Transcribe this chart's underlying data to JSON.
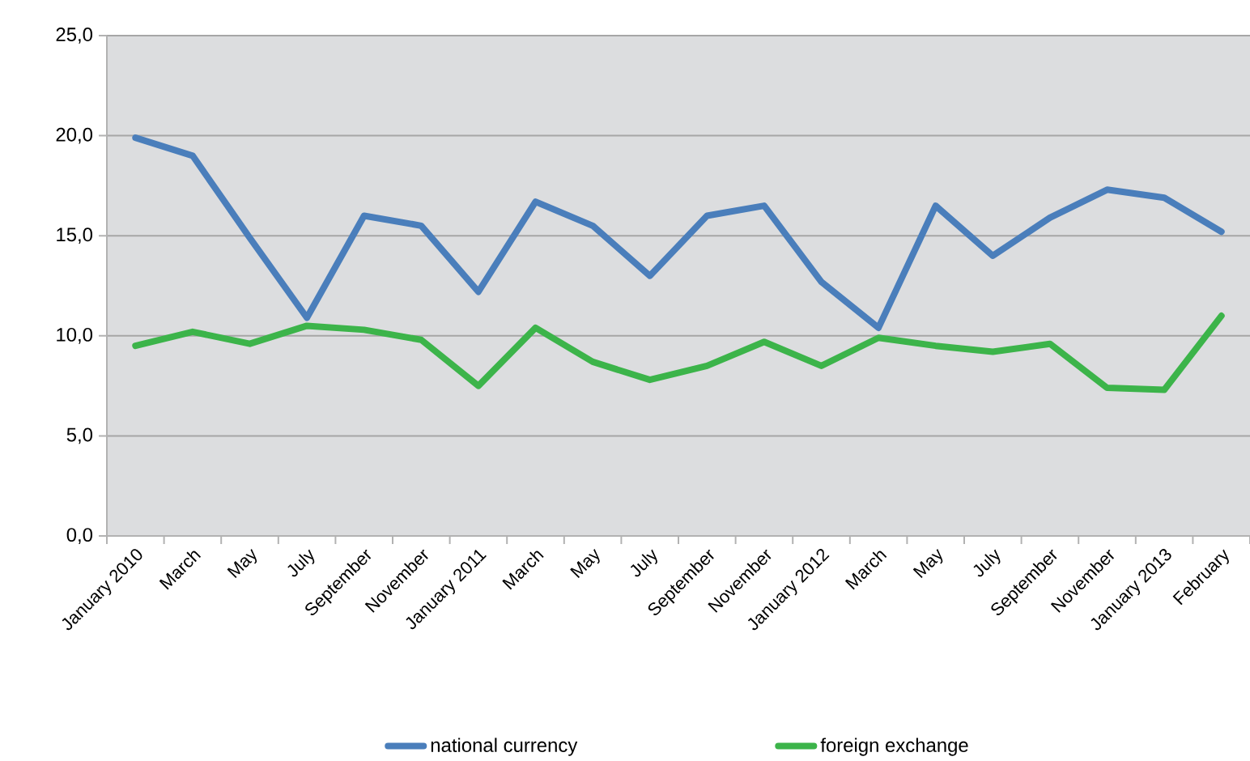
{
  "chart_data": {
    "type": "line",
    "categories": [
      "January 2010",
      "March",
      "May",
      "July",
      "September",
      "November",
      "January 2011",
      "March",
      "May",
      "July",
      "September",
      "November",
      "January 2012",
      "March",
      "May",
      "July",
      "September",
      "November",
      "January 2013",
      "February"
    ],
    "series": [
      {
        "name": "national currency",
        "color": "#4a7ebb",
        "values": [
          19.9,
          19.0,
          14.9,
          10.9,
          16.0,
          15.5,
          12.2,
          16.7,
          15.5,
          13.0,
          16.0,
          16.5,
          12.7,
          10.4,
          16.5,
          14.0,
          15.9,
          17.3,
          16.9,
          15.2
        ]
      },
      {
        "name": "foreign exchange",
        "color": "#3cb44a",
        "values": [
          9.5,
          10.2,
          9.6,
          10.5,
          10.3,
          9.8,
          7.5,
          10.4,
          8.7,
          7.8,
          8.5,
          9.7,
          8.5,
          9.9,
          9.5,
          9.2,
          9.6,
          7.4,
          7.3,
          11.0
        ]
      }
    ],
    "ylim": [
      0,
      25
    ],
    "yticks": [
      {
        "value": 0,
        "label": "0,0"
      },
      {
        "value": 5,
        "label": "5,0"
      },
      {
        "value": 10,
        "label": "10,0"
      },
      {
        "value": 15,
        "label": "15,0"
      },
      {
        "value": 20,
        "label": "20,0"
      },
      {
        "value": 25,
        "label": "25,0"
      }
    ],
    "grid": "y",
    "legend": "bottom",
    "marker": "none",
    "line_style": "solid"
  }
}
